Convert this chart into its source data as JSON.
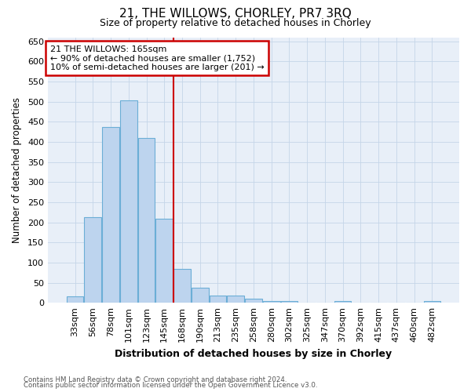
{
  "title": "21, THE WILLOWS, CHORLEY, PR7 3RQ",
  "subtitle": "Size of property relative to detached houses in Chorley",
  "xlabel": "Distribution of detached houses by size in Chorley",
  "ylabel": "Number of detached properties",
  "categories": [
    "33sqm",
    "56sqm",
    "78sqm",
    "101sqm",
    "123sqm",
    "145sqm",
    "168sqm",
    "190sqm",
    "213sqm",
    "235sqm",
    "258sqm",
    "280sqm",
    "302sqm",
    "325sqm",
    "347sqm",
    "370sqm",
    "392sqm",
    "415sqm",
    "437sqm",
    "460sqm",
    "482sqm"
  ],
  "values": [
    15,
    212,
    437,
    503,
    410,
    208,
    85,
    38,
    17,
    17,
    11,
    5,
    5,
    0,
    0,
    5,
    0,
    0,
    0,
    0,
    5
  ],
  "bar_color": "#bdd4ee",
  "bar_edge_color": "#6baed6",
  "annotation_line1": "21 THE WILLOWS: 165sqm",
  "annotation_line2": "← 90% of detached houses are smaller (1,752)",
  "annotation_line3": "10% of semi-detached houses are larger (201) →",
  "annotation_box_color": "#ffffff",
  "annotation_box_edge_color": "#cc0000",
  "vline_x": 5.5,
  "vline_color": "#cc0000",
  "ylim": [
    0,
    660
  ],
  "yticks": [
    0,
    50,
    100,
    150,
    200,
    250,
    300,
    350,
    400,
    450,
    500,
    550,
    600,
    650
  ],
  "plot_bg_color": "#e8eff8",
  "fig_bg_color": "#ffffff",
  "grid_color": "#c5d5e8",
  "footnote1": "Contains HM Land Registry data © Crown copyright and database right 2024.",
  "footnote2": "Contains public sector information licensed under the Open Government Licence v3.0."
}
